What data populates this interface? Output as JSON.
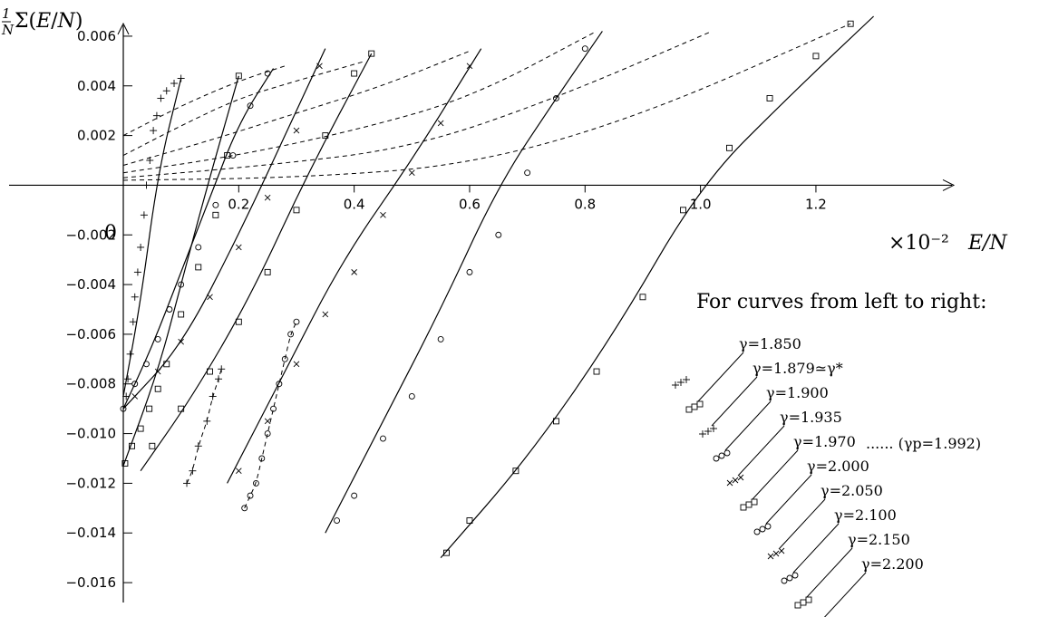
{
  "chart_data": {
    "type": "scatter",
    "title": "",
    "xlabel": "E/N",
    "ylabel": "1/N Σ(E/N)",
    "x_scale_label": "×10⁻²",
    "x_origin_label": "0",
    "xlim": [
      0,
      1.42
    ],
    "ylim": [
      -0.0168,
      0.0068
    ],
    "xticks": [
      0.2,
      0.4,
      0.6,
      0.8,
      1.0,
      1.2
    ],
    "xtick_labels": [
      "0.2",
      "0.4",
      "0.6",
      "0.8",
      "1.0",
      "1.2"
    ],
    "yticks": [
      0.006,
      0.004,
      0.002,
      -0.002,
      -0.004,
      -0.006,
      -0.008,
      -0.01,
      -0.012,
      -0.014,
      -0.016
    ],
    "ytick_labels": [
      "0.006",
      "0.004",
      "0.002",
      "−0.002",
      "−0.004",
      "−0.006",
      "−0.008",
      "−0.010",
      "−0.012",
      "−0.014",
      "−0.016"
    ],
    "legend_title": "For curves from left to right:",
    "legend_note": "...... (γp=1.992)",
    "series": [
      {
        "name": "γ=1.850",
        "marker": "plus",
        "fit": [
          [
            0.0,
            -0.0085
          ],
          [
            0.03,
            -0.0047
          ],
          [
            0.06,
            0.0005
          ],
          [
            0.1,
            0.0043
          ]
        ],
        "points": [
          [
            0.005,
            -0.0085
          ],
          [
            0.008,
            -0.0078
          ],
          [
            0.012,
            -0.0068
          ],
          [
            0.017,
            -0.0055
          ],
          [
            0.02,
            -0.0045
          ],
          [
            0.025,
            -0.0035
          ],
          [
            0.03,
            -0.0025
          ],
          [
            0.036,
            -0.0012
          ],
          [
            0.04,
            0.0
          ],
          [
            0.046,
            0.001
          ],
          [
            0.052,
            0.0022
          ],
          [
            0.058,
            0.0028
          ],
          [
            0.065,
            0.0035
          ],
          [
            0.075,
            0.0038
          ],
          [
            0.088,
            0.0041
          ],
          [
            0.1,
            0.0043
          ]
        ]
      },
      {
        "name": "γ=1.879≃γ*",
        "marker": "square",
        "fit": [
          [
            0.0,
            -0.0113
          ],
          [
            0.06,
            -0.0075
          ],
          [
            0.1,
            -0.004
          ],
          [
            0.14,
            -0.0005
          ],
          [
            0.2,
            0.0044
          ]
        ],
        "points": [
          [
            0.003,
            -0.0112
          ],
          [
            0.015,
            -0.0105
          ],
          [
            0.03,
            -0.0098
          ],
          [
            0.045,
            -0.009
          ],
          [
            0.06,
            -0.0082
          ],
          [
            0.075,
            -0.0072
          ],
          [
            0.1,
            -0.0052
          ],
          [
            0.13,
            -0.0033
          ],
          [
            0.16,
            -0.0012
          ],
          [
            0.18,
            0.0012
          ],
          [
            0.2,
            0.0044
          ]
        ]
      },
      {
        "name": "γ=1.900",
        "marker": "plus",
        "dashed": true,
        "points": [
          [
            0.11,
            -0.012
          ],
          [
            0.12,
            -0.0115
          ],
          [
            0.13,
            -0.0105
          ],
          [
            0.145,
            -0.0095
          ],
          [
            0.155,
            -0.0085
          ],
          [
            0.165,
            -0.0078
          ],
          [
            0.17,
            -0.0074
          ]
        ]
      },
      {
        "name": "γ=1.935",
        "marker": "circle",
        "fit": [
          [
            0.0,
            -0.009
          ],
          [
            0.05,
            -0.0065
          ],
          [
            0.1,
            -0.0035
          ],
          [
            0.15,
            -0.0005
          ],
          [
            0.2,
            0.0025
          ],
          [
            0.26,
            0.0047
          ]
        ],
        "points": [
          [
            0.0,
            -0.009
          ],
          [
            0.02,
            -0.008
          ],
          [
            0.04,
            -0.0072
          ],
          [
            0.06,
            -0.0062
          ],
          [
            0.08,
            -0.005
          ],
          [
            0.1,
            -0.004
          ],
          [
            0.13,
            -0.0025
          ],
          [
            0.16,
            -0.0008
          ],
          [
            0.19,
            0.0012
          ],
          [
            0.22,
            0.0032
          ],
          [
            0.25,
            0.0045
          ]
        ]
      },
      {
        "name": "γ=1.970",
        "marker": "x",
        "fit": [
          [
            0.0,
            -0.009
          ],
          [
            0.1,
            -0.0065
          ],
          [
            0.2,
            -0.002
          ],
          [
            0.3,
            0.003
          ],
          [
            0.35,
            0.0055
          ]
        ],
        "points": [
          [
            0.02,
            -0.0085
          ],
          [
            0.06,
            -0.0075
          ],
          [
            0.1,
            -0.0063
          ],
          [
            0.15,
            -0.0045
          ],
          [
            0.2,
            -0.0025
          ],
          [
            0.25,
            -0.0005
          ],
          [
            0.3,
            0.0022
          ],
          [
            0.34,
            0.0048
          ]
        ]
      },
      {
        "name": "γ=2.000",
        "marker": "square",
        "fit": [
          [
            0.03,
            -0.0115
          ],
          [
            0.12,
            -0.0085
          ],
          [
            0.22,
            -0.0045
          ],
          [
            0.32,
            0.0005
          ],
          [
            0.43,
            0.0053
          ]
        ],
        "points": [
          [
            0.05,
            -0.0105
          ],
          [
            0.1,
            -0.009
          ],
          [
            0.15,
            -0.0075
          ],
          [
            0.2,
            -0.0055
          ],
          [
            0.25,
            -0.0035
          ],
          [
            0.3,
            -0.001
          ],
          [
            0.35,
            0.002
          ],
          [
            0.4,
            0.0045
          ],
          [
            0.43,
            0.0053
          ]
        ]
      },
      {
        "name": "γ=2.050",
        "marker": "circle",
        "dashed": true,
        "points": [
          [
            0.21,
            -0.013
          ],
          [
            0.22,
            -0.0125
          ],
          [
            0.23,
            -0.012
          ],
          [
            0.24,
            -0.011
          ],
          [
            0.25,
            -0.01
          ],
          [
            0.26,
            -0.009
          ],
          [
            0.27,
            -0.008
          ],
          [
            0.28,
            -0.007
          ],
          [
            0.29,
            -0.006
          ],
          [
            0.3,
            -0.0055
          ]
        ]
      },
      {
        "name": "γ=2.100",
        "marker": "x",
        "fit": [
          [
            0.18,
            -0.012
          ],
          [
            0.28,
            -0.0075
          ],
          [
            0.38,
            -0.003
          ],
          [
            0.5,
            0.001
          ],
          [
            0.62,
            0.0055
          ]
        ],
        "points": [
          [
            0.2,
            -0.0115
          ],
          [
            0.25,
            -0.0095
          ],
          [
            0.3,
            -0.0072
          ],
          [
            0.35,
            -0.0052
          ],
          [
            0.4,
            -0.0035
          ],
          [
            0.45,
            -0.0012
          ],
          [
            0.5,
            0.0005
          ],
          [
            0.55,
            0.0025
          ],
          [
            0.6,
            0.0048
          ]
        ]
      },
      {
        "name": "γ=2.150",
        "marker": "circle",
        "fit": [
          [
            0.35,
            -0.014
          ],
          [
            0.45,
            -0.0095
          ],
          [
            0.55,
            -0.005
          ],
          [
            0.65,
            0.0
          ],
          [
            0.75,
            0.0035
          ],
          [
            0.83,
            0.0062
          ]
        ],
        "points": [
          [
            0.37,
            -0.0135
          ],
          [
            0.4,
            -0.0125
          ],
          [
            0.45,
            -0.0102
          ],
          [
            0.5,
            -0.0085
          ],
          [
            0.55,
            -0.0062
          ],
          [
            0.6,
            -0.0035
          ],
          [
            0.65,
            -0.002
          ],
          [
            0.7,
            0.0005
          ],
          [
            0.75,
            0.0035
          ],
          [
            0.8,
            0.0055
          ]
        ]
      },
      {
        "name": "γ=2.200",
        "marker": "square",
        "fit": [
          [
            0.55,
            -0.015
          ],
          [
            0.7,
            -0.011
          ],
          [
            0.85,
            -0.006
          ],
          [
            1.0,
            0.0
          ],
          [
            1.15,
            0.0035
          ],
          [
            1.3,
            0.0068
          ]
        ],
        "points": [
          [
            0.56,
            -0.0148
          ],
          [
            0.6,
            -0.0135
          ],
          [
            0.68,
            -0.0115
          ],
          [
            0.75,
            -0.0095
          ],
          [
            0.82,
            -0.0075
          ],
          [
            0.9,
            -0.0045
          ],
          [
            0.97,
            -0.001
          ],
          [
            1.05,
            0.0015
          ],
          [
            1.12,
            0.0035
          ],
          [
            1.2,
            0.0052
          ],
          [
            1.26,
            0.0065
          ]
        ]
      }
    ],
    "dashed_fits": [
      [
        [
          0.0,
          0.002
        ],
        [
          0.1,
          0.0032
        ],
        [
          0.2,
          0.0042
        ],
        [
          0.28,
          0.0048
        ]
      ],
      [
        [
          0.0,
          0.0012
        ],
        [
          0.1,
          0.0024
        ],
        [
          0.2,
          0.0035
        ],
        [
          0.3,
          0.0042
        ],
        [
          0.42,
          0.005
        ]
      ],
      [
        [
          0.0,
          0.0008
        ],
        [
          0.15,
          0.0018
        ],
        [
          0.3,
          0.0029
        ],
        [
          0.45,
          0.004
        ],
        [
          0.6,
          0.0054
        ]
      ],
      [
        [
          0.0,
          0.0005
        ],
        [
          0.2,
          0.0012
        ],
        [
          0.4,
          0.0022
        ],
        [
          0.6,
          0.0035
        ],
        [
          0.82,
          0.0062
        ]
      ],
      [
        [
          0.0,
          0.0003
        ],
        [
          0.25,
          0.0008
        ],
        [
          0.5,
          0.0015
        ],
        [
          0.75,
          0.0035
        ],
        [
          1.02,
          0.0062
        ]
      ],
      [
        [
          0.0,
          0.0002
        ],
        [
          0.3,
          0.0003
        ],
        [
          0.6,
          0.0008
        ],
        [
          0.9,
          0.0028
        ],
        [
          1.26,
          0.0065
        ]
      ]
    ]
  }
}
